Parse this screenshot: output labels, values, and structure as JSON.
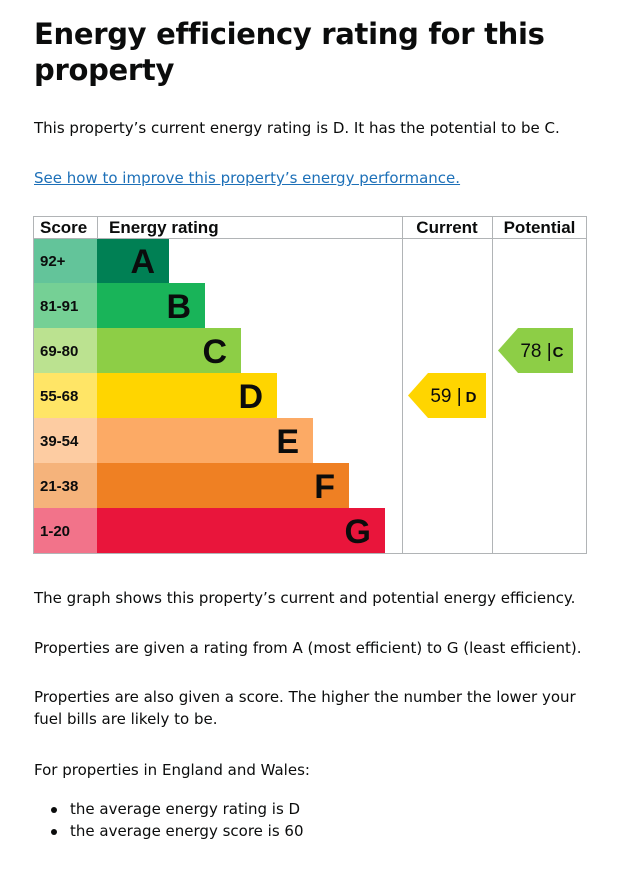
{
  "page": {
    "title": "Energy efficiency rating for this property",
    "intro": "This property’s current energy rating is D. It has the potential to be C.",
    "improve_link": "See how to improve this property’s energy performance.",
    "para_graph": "The graph shows this property’s current and potential energy efficiency.",
    "para_ratings": "Properties are given a rating from A (most efficient) to G (least efficient).",
    "para_score": "Properties are also given a score. The higher the number the lower your fuel bills are likely to be.",
    "para_region": "For properties in England and Wales:",
    "bullets": [
      "the average energy rating is D",
      "the average energy score is 60"
    ]
  },
  "chart_data": {
    "type": "table",
    "headers": [
      "Score",
      "Energy rating",
      "Current",
      "Potential"
    ],
    "bands": [
      {
        "score": "92+",
        "rating": "A",
        "color": "#008054",
        "score_bg": "#63c49a"
      },
      {
        "score": "81-91",
        "rating": "B",
        "color": "#19b459",
        "score_bg": "#75d095"
      },
      {
        "score": "69-80",
        "rating": "C",
        "color": "#8dce46",
        "score_bg": "#bbe290"
      },
      {
        "score": "55-68",
        "rating": "D",
        "color": "#ffd500",
        "score_bg": "#ffe566"
      },
      {
        "score": "39-54",
        "rating": "E",
        "color": "#fcaa65",
        "score_bg": "#fdcca2"
      },
      {
        "score": "21-38",
        "rating": "F",
        "color": "#ef8023",
        "score_bg": "#f5b37b"
      },
      {
        "score": "1-20",
        "rating": "G",
        "color": "#e9153b",
        "score_bg": "#f2738a"
      }
    ],
    "current": {
      "score": 59,
      "rating": "D",
      "color": "#ffd500"
    },
    "potential": {
      "score": 78,
      "rating": "C",
      "color": "#8dce46"
    }
  }
}
